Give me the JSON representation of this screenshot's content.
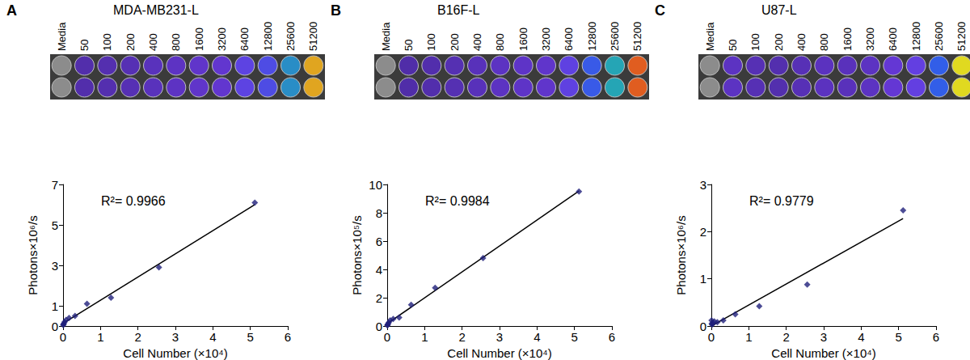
{
  "chart_data": [
    {
      "type": "scatter",
      "label": "A",
      "title": "MDA-MB231-L",
      "plate_labels": [
        "Media",
        "50",
        "100",
        "200",
        "400",
        "800",
        "1600",
        "3200",
        "6400",
        "12800",
        "25600",
        "51200"
      ],
      "x_label": "Cell Number (×10⁴)",
      "y_label": "Photons×10⁶/s",
      "annotation": "R²= 0.9966",
      "x": [
        0.005,
        0.01,
        0.02,
        0.04,
        0.08,
        0.16,
        0.32,
        0.64,
        1.28,
        2.56,
        5.12
      ],
      "values": [
        0.05,
        0.08,
        0.12,
        0.2,
        0.3,
        0.4,
        0.5,
        1.1,
        1.4,
        2.9,
        6.1
      ],
      "xlim": [
        0,
        6
      ],
      "xticks": [
        0,
        1,
        2,
        3,
        4,
        5,
        6
      ],
      "ylim": [
        0,
        7
      ],
      "yticks": [
        0,
        1,
        3,
        5,
        7
      ],
      "color": "#1f1f7a",
      "marker": "diamond",
      "line_style": "solid",
      "grid": false
    },
    {
      "type": "scatter",
      "label": "B",
      "title": "B16F-L",
      "plate_labels": [
        "Media",
        "50",
        "100",
        "200",
        "400",
        "800",
        "1600",
        "3200",
        "6400",
        "12800",
        "25600",
        "51200"
      ],
      "x_label": "Cell Number (×10⁴)",
      "y_label": "Photons×10⁵/s",
      "annotation": "R²= 0.9984",
      "x": [
        0.005,
        0.01,
        0.02,
        0.04,
        0.08,
        0.16,
        0.32,
        0.64,
        1.28,
        2.56,
        5.12
      ],
      "values": [
        0.05,
        0.08,
        0.15,
        0.25,
        0.4,
        0.5,
        0.6,
        1.5,
        2.7,
        4.8,
        9.5
      ],
      "xlim": [
        0,
        6
      ],
      "xticks": [
        0,
        1,
        2,
        3,
        4,
        5,
        6
      ],
      "ylim": [
        0,
        10
      ],
      "yticks": [
        0,
        2,
        4,
        6,
        8,
        10
      ],
      "color": "#1f1f7a",
      "marker": "diamond",
      "line_style": "solid",
      "grid": false
    },
    {
      "type": "scatter",
      "label": "C",
      "title": "U87-L",
      "plate_labels": [
        "Media",
        "50",
        "100",
        "200",
        "400",
        "800",
        "1600",
        "3200",
        "6400",
        "12800",
        "25600",
        "51200"
      ],
      "x_label": "Cell Number (×10⁴)",
      "y_label": "Photons×10⁶/s",
      "annotation": "R²= 0.9779",
      "x": [
        0.005,
        0.01,
        0.02,
        0.04,
        0.08,
        0.16,
        0.32,
        0.64,
        1.28,
        2.56,
        5.12
      ],
      "values": [
        0.12,
        0.05,
        0.03,
        0.06,
        0.1,
        0.08,
        0.12,
        0.25,
        0.42,
        0.88,
        2.45
      ],
      "xlim": [
        0,
        6
      ],
      "xticks": [
        0,
        1,
        2,
        3,
        4,
        5,
        6
      ],
      "ylim": [
        0,
        3
      ],
      "yticks": [
        0,
        1,
        2,
        3
      ],
      "color": "#1f1f7a",
      "marker": "diamond",
      "line_style": "solid",
      "grid": false
    }
  ]
}
